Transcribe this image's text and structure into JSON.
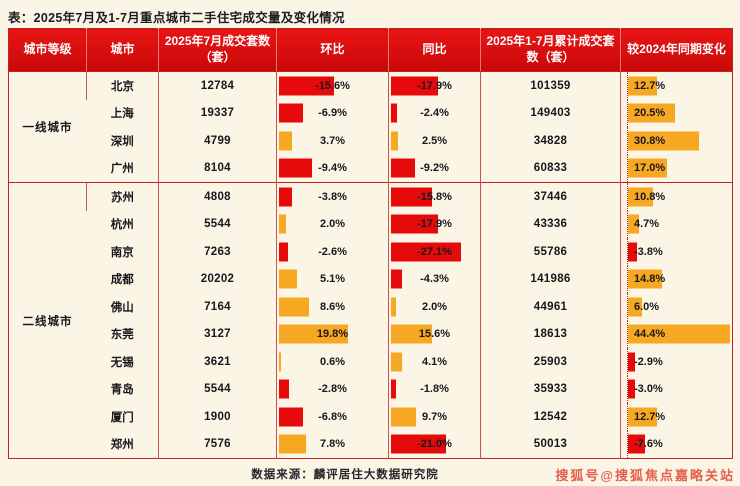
{
  "title": "表：2025年7月及1-7月重点城市二手住宅成交量及变化情况",
  "source": "数据来源：麟评居住大数据研究院",
  "watermark": "搜狐号@搜狐焦点嘉略关站",
  "colors": {
    "page_background": "#fbf5e6",
    "header_bg_top": "#e81515",
    "header_bg_bottom": "#c90808",
    "border": "#c5231f",
    "positive_bar": "#f7a823",
    "negative_bar": "#e60a0a",
    "watermark": "#e4604e"
  },
  "chart_data": {
    "type": "table",
    "title": "表：2025年7月及1-7月重点城市二手住宅成交量及变化情况",
    "columns": [
      "城市等级",
      "城市",
      "2025年7月成交套数（套）",
      "环比",
      "同比",
      "2025年1-7月累计成交套数（套）",
      "较2024年同期变化"
    ],
    "legend_note": "环比/同比/较2024年同期变化三列以条形图表示：正值为橙色条，负值为红色条",
    "tiers": [
      {
        "label": "一线城市",
        "span": 4
      },
      {
        "label": "二线城市",
        "span": 10
      }
    ],
    "rows": [
      {
        "city": "北京",
        "jul_sales": "12784",
        "mom_pct": -15.6,
        "yoy_pct": -17.9,
        "cum_sales": "101359",
        "vs2024_pct": 12.7
      },
      {
        "city": "上海",
        "jul_sales": "19337",
        "mom_pct": -6.9,
        "yoy_pct": -2.4,
        "cum_sales": "149403",
        "vs2024_pct": 20.5
      },
      {
        "city": "深圳",
        "jul_sales": "4799",
        "mom_pct": 3.7,
        "yoy_pct": 2.5,
        "cum_sales": "34828",
        "vs2024_pct": 30.8
      },
      {
        "city": "广州",
        "jul_sales": "8104",
        "mom_pct": -9.4,
        "yoy_pct": -9.2,
        "cum_sales": "60833",
        "vs2024_pct": 17.0
      },
      {
        "city": "苏州",
        "jul_sales": "4808",
        "mom_pct": -3.8,
        "yoy_pct": -15.8,
        "cum_sales": "37446",
        "vs2024_pct": 10.8
      },
      {
        "city": "杭州",
        "jul_sales": "5544",
        "mom_pct": 2.0,
        "yoy_pct": -17.9,
        "cum_sales": "43336",
        "vs2024_pct": 4.7
      },
      {
        "city": "南京",
        "jul_sales": "7263",
        "mom_pct": -2.6,
        "yoy_pct": -27.1,
        "cum_sales": "55786",
        "vs2024_pct": -3.8
      },
      {
        "city": "成都",
        "jul_sales": "20202",
        "mom_pct": 5.1,
        "yoy_pct": -4.3,
        "cum_sales": "141986",
        "vs2024_pct": 14.8
      },
      {
        "city": "佛山",
        "jul_sales": "7164",
        "mom_pct": 8.6,
        "yoy_pct": 2.0,
        "cum_sales": "44961",
        "vs2024_pct": 6.0
      },
      {
        "city": "东莞",
        "jul_sales": "3127",
        "mom_pct": 19.8,
        "yoy_pct": 15.6,
        "cum_sales": "18613",
        "vs2024_pct": 44.4
      },
      {
        "city": "无锡",
        "jul_sales": "3621",
        "mom_pct": 0.6,
        "yoy_pct": 4.1,
        "cum_sales": "25903",
        "vs2024_pct": -2.9
      },
      {
        "city": "青岛",
        "jul_sales": "5544",
        "mom_pct": -2.8,
        "yoy_pct": -1.8,
        "cum_sales": "35933",
        "vs2024_pct": -3.0
      },
      {
        "city": "厦门",
        "jul_sales": "1900",
        "mom_pct": -6.8,
        "yoy_pct": 9.7,
        "cum_sales": "12542",
        "vs2024_pct": 12.7
      },
      {
        "city": "郑州",
        "jul_sales": "7576",
        "mom_pct": 7.8,
        "yoy_pct": -21.0,
        "cum_sales": "50013",
        "vs2024_pct": -7.6
      }
    ]
  }
}
